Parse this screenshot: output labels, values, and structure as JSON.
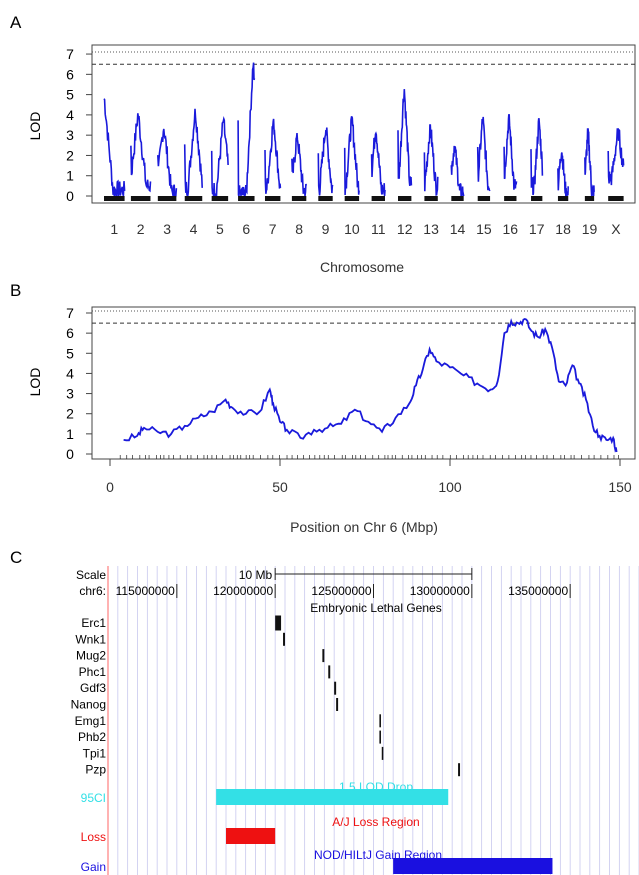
{
  "chart_data": [
    {
      "panel": "A",
      "type": "line",
      "ylabel": "LOD",
      "xlabel": "Chromosome",
      "ylim": [
        0,
        7.2
      ],
      "yticks": [
        0,
        1,
        2,
        3,
        4,
        5,
        6,
        7
      ],
      "thresholds": {
        "dotted": 7.1,
        "dashed": 6.5
      },
      "chromosomes": [
        "1",
        "2",
        "3",
        "4",
        "5",
        "6",
        "7",
        "8",
        "9",
        "10",
        "11",
        "12",
        "13",
        "14",
        "15",
        "16",
        "17",
        "18",
        "19",
        "X"
      ],
      "peak_lod": [
        4.8,
        4.1,
        3.5,
        4.3,
        3.8,
        6.7,
        3.8,
        3.1,
        3.5,
        3.9,
        3.5,
        5.4,
        3.5,
        2.6,
        3.9,
        4.0,
        3.8,
        2.4,
        3.3,
        3.3
      ],
      "min_lod": [
        0.3,
        0.5,
        0.2,
        0.4,
        0.3,
        0.1,
        0.4,
        0.3,
        0.4,
        0.5,
        0.3,
        0.6,
        0.5,
        0.2,
        0.6,
        0.5,
        0.5,
        0.1,
        0.2,
        0.9
      ],
      "color": "#1a1adb"
    },
    {
      "panel": "B",
      "type": "line",
      "ylabel": "LOD",
      "xlabel": "Position on Chr 6 (Mbp)",
      "xlim": [
        0,
        155
      ],
      "xticks": [
        0,
        50,
        100,
        150
      ],
      "ylim": [
        -0.1,
        7.2
      ],
      "yticks": [
        0,
        1,
        2,
        3,
        4,
        5,
        6,
        7
      ],
      "thresholds": {
        "dotted": 7.1,
        "dashed": 6.5
      },
      "x": [
        4,
        8,
        10,
        14,
        18,
        22,
        26,
        30,
        34,
        36,
        40,
        44,
        47,
        48,
        50,
        52,
        56,
        60,
        64,
        68,
        72,
        76,
        80,
        84,
        88,
        90,
        92,
        94,
        96,
        100,
        104,
        108,
        112,
        114,
        116,
        118,
        120,
        122,
        124,
        126,
        128,
        130,
        132,
        134,
        136,
        138,
        140,
        142,
        144,
        146,
        148,
        149
      ],
      "y": [
        0.7,
        0.9,
        1.3,
        1.1,
        1.0,
        1.4,
        1.8,
        2.1,
        2.7,
        2.3,
        2.0,
        2.1,
        3.2,
        2.5,
        1.6,
        1.2,
        0.8,
        1.2,
        1.3,
        1.5,
        2.2,
        1.6,
        1.1,
        1.8,
        2.5,
        3.4,
        4.2,
        5.2,
        4.6,
        4.3,
        3.9,
        3.5,
        3.2,
        3.6,
        6.0,
        6.6,
        6.5,
        6.7,
        6.1,
        5.8,
        6.2,
        5.3,
        3.6,
        3.4,
        4.4,
        3.5,
        2.7,
        1.4,
        0.9,
        0.7,
        0.8,
        0.1
      ],
      "color": "#1a1adb"
    },
    {
      "panel": "C",
      "type": "genome-browser",
      "scale_label": "Scale",
      "scale_bar_label": "10 Mb",
      "chrom_label": "chr6:",
      "xlim": [
        111500000,
        138500000
      ],
      "axis_ticks": [
        115000000,
        120000000,
        125000000,
        130000000,
        135000000
      ],
      "axis_tick_labels": [
        "115000000",
        "120000000",
        "125000000",
        "130000000",
        "135000000"
      ],
      "scale_bar": [
        120000000,
        130000000
      ],
      "gene_track_title": "Embryonic Lethal Genes",
      "genes": [
        {
          "name": "Erc1",
          "start": 120000000,
          "end": 120300000
        },
        {
          "name": "Wnk1",
          "start": 120400000,
          "end": 120500000
        },
        {
          "name": "Mug2",
          "start": 122400000,
          "end": 122500000
        },
        {
          "name": "Phc1",
          "start": 122700000,
          "end": 122800000
        },
        {
          "name": "Gdf3",
          "start": 123000000,
          "end": 123100000
        },
        {
          "name": "Nanog",
          "start": 123100000,
          "end": 123200000
        },
        {
          "name": "Emg1",
          "start": 125300000,
          "end": 125380000
        },
        {
          "name": "Phb2",
          "start": 125300000,
          "end": 125380000
        },
        {
          "name": "Tpi1",
          "start": 125420000,
          "end": 125500000
        },
        {
          "name": "Pzp",
          "start": 129300000,
          "end": 129400000
        }
      ],
      "region_tracks": [
        {
          "label": "95CI",
          "title": "1.5 LOD Drop",
          "start": 117000000,
          "end": 128800000,
          "color": "#33e0e6"
        },
        {
          "label": "Loss",
          "title": "A/J Loss Region",
          "start": 117500000,
          "end": 120000000,
          "color": "#ee1111"
        },
        {
          "label": "Gain",
          "title": "NOD/HILtJ Gain Region",
          "start": 126000000,
          "end": 134100000,
          "color": "#1a10e0"
        }
      ]
    }
  ],
  "panel_letters": [
    "A",
    "B",
    "C"
  ]
}
